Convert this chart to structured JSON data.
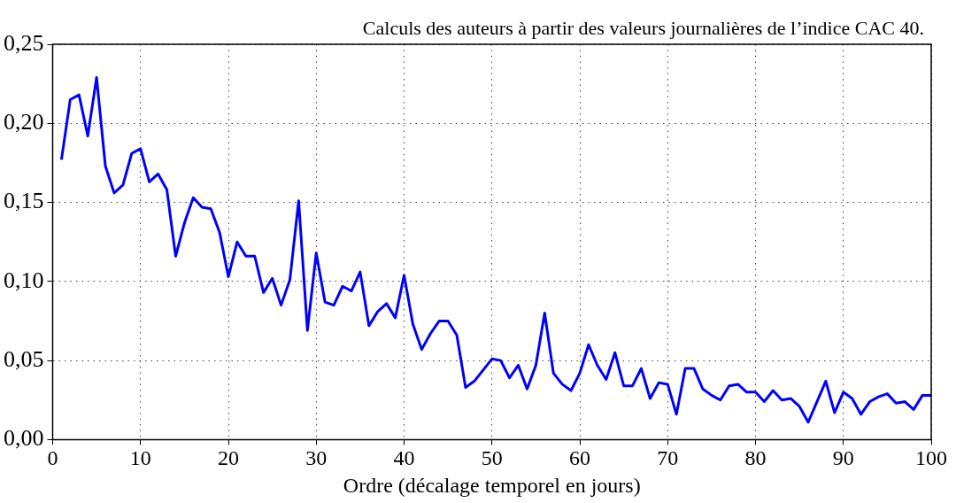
{
  "chart_data": {
    "type": "line",
    "xlabel": "Ordre (décalage temporel en jours)",
    "annotations": [
      "Calculs des auteurs à partir des valeurs journalières de l’indice CAC 40."
    ],
    "x": [
      1,
      2,
      3,
      4,
      5,
      6,
      7,
      8,
      9,
      10,
      11,
      12,
      13,
      14,
      15,
      16,
      17,
      18,
      19,
      20,
      21,
      22,
      23,
      24,
      25,
      26,
      27,
      28,
      29,
      30,
      31,
      32,
      33,
      34,
      35,
      36,
      37,
      38,
      39,
      40,
      41,
      42,
      43,
      44,
      45,
      46,
      47,
      48,
      49,
      50,
      51,
      52,
      53,
      54,
      55,
      56,
      57,
      58,
      59,
      60,
      61,
      62,
      63,
      64,
      65,
      66,
      67,
      68,
      69,
      70,
      71,
      72,
      73,
      74,
      75,
      76,
      77,
      78,
      79,
      80,
      81,
      82,
      83,
      84,
      85,
      86,
      87,
      88,
      89,
      90,
      91,
      92,
      93,
      94,
      95,
      96,
      97,
      98,
      99,
      100
    ],
    "series": [
      {
        "color": "#0000ff",
        "values": [
          0.177,
          0.215,
          0.218,
          0.192,
          0.229,
          0.173,
          0.156,
          0.161,
          0.181,
          0.184,
          0.163,
          0.168,
          0.158,
          0.116,
          0.137,
          0.153,
          0.147,
          0.146,
          0.131,
          0.103,
          0.125,
          0.116,
          0.116,
          0.093,
          0.102,
          0.085,
          0.101,
          0.151,
          0.069,
          0.118,
          0.087,
          0.085,
          0.097,
          0.094,
          0.106,
          0.072,
          0.081,
          0.086,
          0.077,
          0.104,
          0.073,
          0.057,
          0.067,
          0.075,
          0.075,
          0.066,
          0.033,
          0.037,
          0.044,
          0.051,
          0.05,
          0.039,
          0.047,
          0.032,
          0.047,
          0.08,
          0.042,
          0.035,
          0.031,
          0.042,
          0.06,
          0.047,
          0.038,
          0.055,
          0.034,
          0.034,
          0.045,
          0.026,
          0.036,
          0.035,
          0.016,
          0.045,
          0.045,
          0.032,
          0.028,
          0.025,
          0.034,
          0.035,
          0.03,
          0.03,
          0.024,
          0.031,
          0.025,
          0.026,
          0.021,
          0.011,
          0.024,
          0.037,
          0.017,
          0.03,
          0.026,
          0.016,
          0.024,
          0.027,
          0.029,
          0.023,
          0.024,
          0.019,
          0.028,
          0.028
        ]
      }
    ],
    "xlim": [
      0,
      100
    ],
    "xticks": [
      0,
      10,
      20,
      30,
      40,
      50,
      60,
      70,
      80,
      90,
      100
    ],
    "ylim": [
      0,
      0.25
    ],
    "yticks": [
      {
        "value": 0,
        "label": "0,00"
      },
      {
        "value": 0.05,
        "label": "0,05"
      },
      {
        "value": 0.1,
        "label": "0,10"
      },
      {
        "value": 0.15,
        "label": "0,15"
      },
      {
        "value": 0.2,
        "label": "0,20"
      },
      {
        "value": 0.25,
        "label": "0,25"
      }
    ],
    "grid": true,
    "legend": false,
    "marker": "none",
    "line_style": "solid"
  }
}
